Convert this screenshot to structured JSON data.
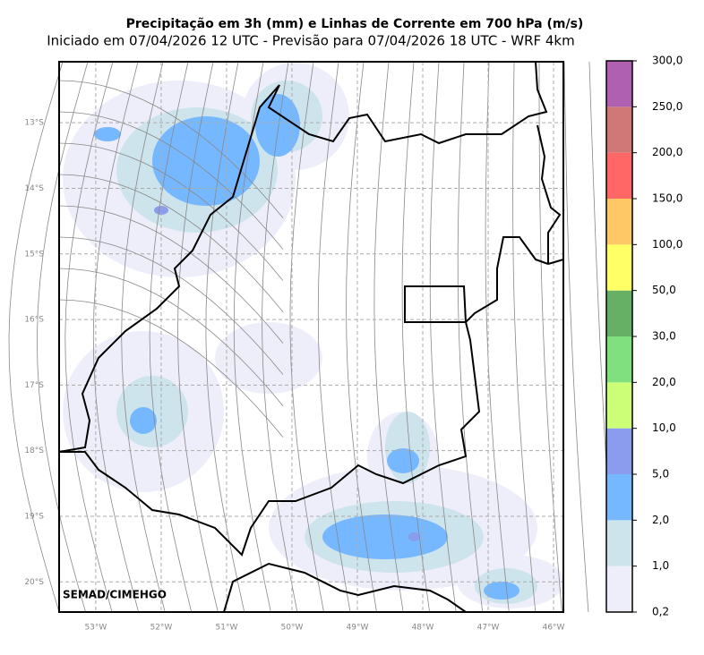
{
  "header": {
    "title": "Precipitação em 3h (mm) e Linhas de Corrente em 700 hPa (m/s)",
    "subtitle": "Iniciado em 07/04/2026 12 UTC - Previsão para 07/04/2026 18 UTC - WRF 4km"
  },
  "map": {
    "lon_range": [
      -53.56,
      -45.85
    ],
    "lat_range": [
      -20.46,
      -12.07
    ],
    "lon_ticks": [
      {
        "value": -53,
        "label": "53°W"
      },
      {
        "value": -52,
        "label": "52°W"
      },
      {
        "value": -51,
        "label": "51°W"
      },
      {
        "value": -50,
        "label": "50°W"
      },
      {
        "value": -49,
        "label": "49°W"
      },
      {
        "value": -48,
        "label": "48°W"
      },
      {
        "value": -47,
        "label": "47°W"
      },
      {
        "value": -46,
        "label": "46°W"
      }
    ],
    "lat_ticks": [
      {
        "value": -13,
        "label": "13°S"
      },
      {
        "value": -14,
        "label": "14°S"
      },
      {
        "value": -15,
        "label": "15°S"
      },
      {
        "value": -16,
        "label": "16°S"
      },
      {
        "value": -17,
        "label": "17°S"
      },
      {
        "value": -18,
        "label": "18°S"
      },
      {
        "value": -19,
        "label": "19°S"
      },
      {
        "value": -20,
        "label": "20°S"
      }
    ],
    "credit": "SEMAD/CIMEHGO"
  },
  "colorbar": {
    "ticks": [
      {
        "value": 0.2,
        "label": "0,2"
      },
      {
        "value": 1,
        "label": "1,0"
      },
      {
        "value": 2,
        "label": "2,0"
      },
      {
        "value": 5,
        "label": "5,0"
      },
      {
        "value": 10,
        "label": "10,0"
      },
      {
        "value": 20,
        "label": "20,0"
      },
      {
        "value": 30,
        "label": "30,0"
      },
      {
        "value": 50,
        "label": "50,0"
      },
      {
        "value": 100,
        "label": "100,0"
      },
      {
        "value": 150,
        "label": "150,0"
      },
      {
        "value": 200,
        "label": "200,0"
      },
      {
        "value": 250,
        "label": "250,0"
      },
      {
        "value": 300,
        "label": "300,0"
      }
    ],
    "colors": [
      "#eeeefa",
      "#cde4ec",
      "#76b8ff",
      "#8b9bee",
      "#ccff77",
      "#80e080",
      "#66b066",
      "#ffff66",
      "#ffc866",
      "#ff6666",
      "#d07777",
      "#b060b0"
    ]
  }
}
